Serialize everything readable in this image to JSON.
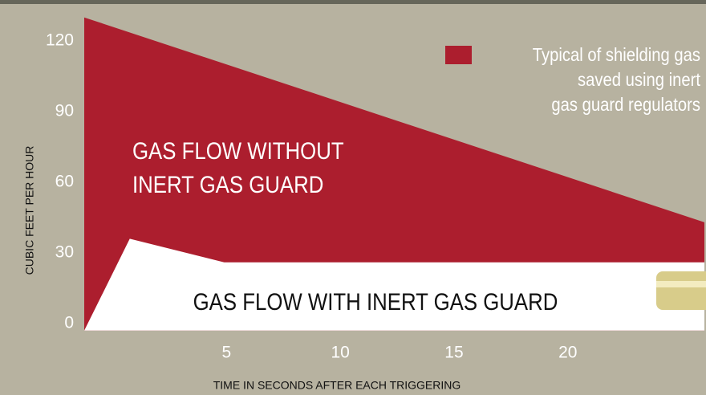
{
  "chart_data": {
    "type": "area",
    "xlabel": "TIME IN SECONDS AFTER EACH TRIGGERING",
    "ylabel": "CUBIC FEET PER HOUR",
    "xlim": [
      -1.25,
      26
    ],
    "ylim": [
      -3,
      130
    ],
    "xticks": [
      5,
      10,
      15,
      20
    ],
    "yticks": [
      0,
      30,
      60,
      90,
      120
    ],
    "series": [
      {
        "color": "#ac1e2e",
        "x": [
          -1.25,
          26
        ],
        "values": [
          130,
          43
        ]
      },
      {
        "color": "#ffffff",
        "x": [
          -1.25,
          0.75,
          4.9,
          26
        ],
        "values": [
          -3,
          36,
          26,
          26
        ]
      }
    ],
    "legend": {
      "color": "#ac1e2e",
      "lines": [
        "Typical of shielding gas",
        "saved using inert",
        "gas guard regulators"
      ]
    },
    "annotations": [
      {
        "lines": [
          "GAS FLOW WITHOUT",
          "INERT GAS GUARD"
        ],
        "color": "#ffffff"
      },
      {
        "lines": [
          "GAS FLOW WITH INERT GAS GUARD"
        ],
        "color": "#111111"
      }
    ]
  }
}
